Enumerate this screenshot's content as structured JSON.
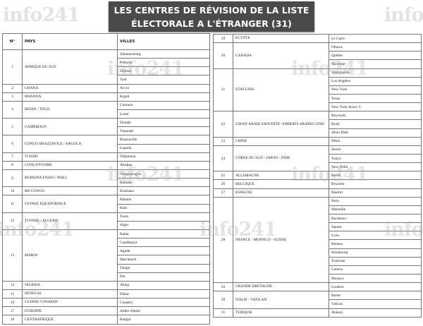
{
  "title": {
    "line1": "LES CENTRES DE RÉVISION DE LA LISTE",
    "line2": "ÉLECTORALE A L'ÉTRANGER (31)"
  },
  "watermark": "info241",
  "headers": {
    "num": "N°",
    "pays": "PAYS",
    "villes": "VILLES"
  },
  "left_rows": [
    {
      "num": "1",
      "pays": "AFRIQUE DU SUD",
      "villes": [
        "Johannesburg",
        "Prétoria",
        "Durban",
        "Vaal"
      ]
    },
    {
      "num": "2",
      "pays": "GHANA",
      "villes": [
        "Accra"
      ]
    },
    {
      "num": "3",
      "pays": "RWANDA",
      "villes": [
        "Kigali"
      ]
    },
    {
      "num": "4",
      "pays": "BENIN / TOGO",
      "villes": [
        "Cotonou",
        "Lomé"
      ]
    },
    {
      "num": "5",
      "pays": "CAMEROUN",
      "villes": [
        "Douala",
        "Yaoundé"
      ]
    },
    {
      "num": "6",
      "pays": "CONGO BRAZZAVILE / ANGOLA",
      "villes": [
        "Brazzaville",
        "Luanda"
      ]
    },
    {
      "num": "7",
      "pays": "TCHAD",
      "villes": [
        "Ndjamena"
      ]
    },
    {
      "num": "8",
      "pays": "COTE-D'IVOIRE",
      "villes": [
        "Abidjan"
      ]
    },
    {
      "num": "9",
      "pays": "BURKINA FASSO /  MALI",
      "villes": [
        "Ouagadougou",
        "Bamako"
      ]
    },
    {
      "num": "10",
      "pays": "RD CONGO",
      "villes": [
        "Kinshasa"
      ]
    },
    {
      "num": "11",
      "pays": "GUINEE EQUATORIALE",
      "villes": [
        "Malabo",
        "Bata"
      ]
    },
    {
      "num": "12",
      "pays": "TUNISIE / ALGERIE",
      "villes": [
        "Tunis",
        "Alger"
      ]
    },
    {
      "num": "13",
      "pays": "MAROC",
      "villes": [
        "Rabat",
        "Casablanca",
        "Agadir",
        "Marrakech",
        "Tanger",
        "Fès"
      ]
    },
    {
      "num": "14",
      "pays": "NIGERIA",
      "villes": [
        "Abuja"
      ]
    },
    {
      "num": "15",
      "pays": "SENEGAL",
      "villes": [
        "Dakar"
      ]
    },
    {
      "num": "16",
      "pays": "GUINEE CONAKRY",
      "villes": [
        "Conakry"
      ]
    },
    {
      "num": "17",
      "pays": "ETHIOPIE",
      "villes": [
        "Addis-Abeba"
      ]
    },
    {
      "num": "18",
      "pays": "CENTRAFRIQUE",
      "villes": [
        "Bangui"
      ]
    }
  ],
  "right_rows": [
    {
      "num": "19",
      "pays": "EGYPTE",
      "villes": [
        "Le Caire"
      ]
    },
    {
      "num": "20",
      "pays": "CANADA",
      "villes": [
        "Ottawa",
        "Québec",
        "Montréal"
      ]
    },
    {
      "num": "21",
      "pays": "ETAT-UNIS",
      "villes": [
        "Washington",
        "Los Angeles",
        "New-York",
        "Texas",
        "New-York Jersey C."
      ]
    },
    {
      "num": "22",
      "pays": "LIBAN-ARABI SAOUDITE- EMIRATS ARABES UNIS",
      "villes": [
        "Beyrouth",
        "Ryad",
        "Abou Dabi"
      ]
    },
    {
      "num": "23",
      "pays": "CHINE",
      "villes": [
        "Pékin"
      ]
    },
    {
      "num": "24",
      "pays": "COREE DU SUD - JAPON - INDE",
      "villes": [
        "Séoul/",
        "Tokyo",
        "New Delhi"
      ]
    },
    {
      "num": "25",
      "pays": "ALLEMAGNE",
      "villes": [
        "Berlin"
      ]
    },
    {
      "num": "26",
      "pays": "BELGIQUE",
      "villes": [
        "Bruxelle"
      ]
    },
    {
      "num": "27",
      "pays": "ESPAGNE",
      "villes": [
        "Madrid"
      ]
    },
    {
      "num": "28",
      "pays": "FRANCE - MONACO - SUISSE",
      "villes": [
        "Paris",
        "Marseille",
        "Bordeaux",
        "Nantes",
        "Lyon",
        "Rennes",
        "Strasbourg",
        "Toulouse",
        "Genève",
        "Monaco"
      ]
    },
    {
      "num": "29",
      "pays": "GRANDE BRETAGNE",
      "villes": [
        "Londres"
      ]
    },
    {
      "num": "30",
      "pays": "ITALIE - VATICAN",
      "villes": [
        "Rome",
        "Vatican"
      ]
    },
    {
      "num": "31",
      "pays": "TURQUIE",
      "villes": [
        "Ankara"
      ]
    }
  ]
}
